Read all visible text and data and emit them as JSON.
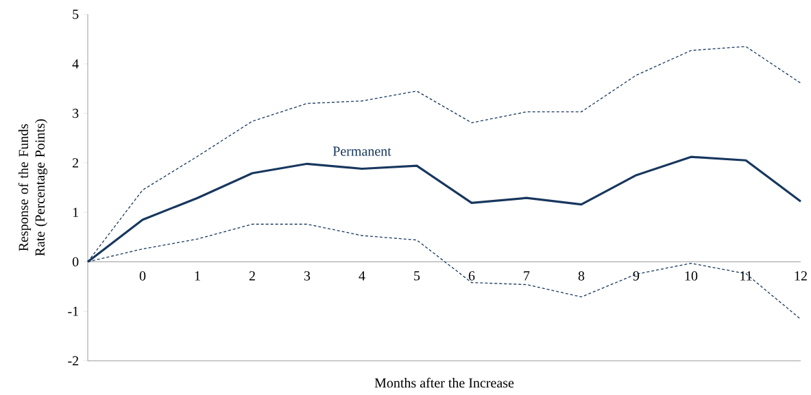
{
  "chart_data": {
    "type": "line",
    "xlabel": "Months after the Increase",
    "ylabel": "Response of the Funds Rate (Percentage Points)",
    "categories": [
      null,
      "0",
      "1",
      "2",
      "3",
      "4",
      "5",
      "6",
      "7",
      "8",
      "9",
      "10",
      "11",
      "12"
    ],
    "ylim": [
      -2,
      5
    ],
    "yticks": [
      -2,
      -1,
      0,
      1,
      2,
      3,
      4,
      5
    ],
    "grid": false,
    "marker": "none",
    "series": [
      {
        "name": "Permanent",
        "color": "#17375e",
        "line_style": "solid",
        "values": [
          0,
          0.85,
          1.29,
          1.79,
          1.98,
          1.88,
          1.94,
          1.19,
          1.29,
          1.16,
          1.75,
          2.12,
          2.05,
          1.22
        ]
      },
      {
        "color": "#17375e",
        "line_style": "dashed",
        "values": [
          0,
          1.45,
          2.13,
          2.84,
          3.2,
          3.25,
          3.45,
          2.81,
          3.03,
          3.03,
          3.77,
          4.27,
          4.35,
          3.61
        ]
      },
      {
        "color": "#17375e",
        "line_style": "dashed",
        "values": [
          0,
          0.26,
          0.46,
          0.76,
          0.76,
          0.53,
          0.44,
          -0.42,
          -0.46,
          -0.71,
          -0.25,
          -0.03,
          -0.24,
          -1.16
        ]
      }
    ]
  }
}
